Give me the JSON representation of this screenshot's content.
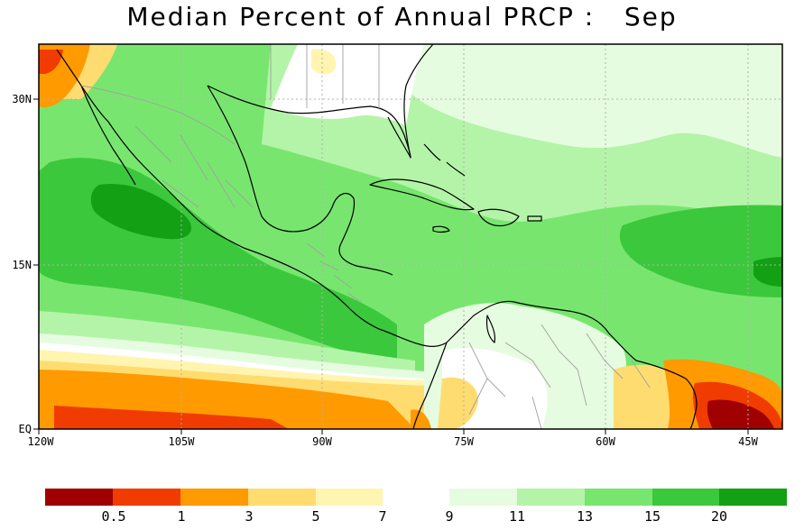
{
  "title": "Median Percent of Annual PRCP :   Sep",
  "map": {
    "x_ticks": [
      "120W",
      "105W",
      "90W",
      "75W",
      "60W",
      "45W"
    ],
    "y_ticks": [
      "30N",
      "15N",
      "EQ"
    ],
    "colors": {
      "land_outline": "#000000",
      "borders": "#a0a0a0",
      "gridlines": "#b0b0b0"
    }
  },
  "colorbar": {
    "colors": [
      "#a00000",
      "#f03c00",
      "#ff9a00",
      "#ffdc70",
      "#fff5b0",
      "#ffffff",
      "#e6fce0",
      "#b4f4a8",
      "#78e66e",
      "#3cc83c",
      "#14a014"
    ],
    "labels": [
      "0.5",
      "1",
      "3",
      "5",
      "7",
      "9",
      "11",
      "13",
      "15",
      "20"
    ]
  }
}
